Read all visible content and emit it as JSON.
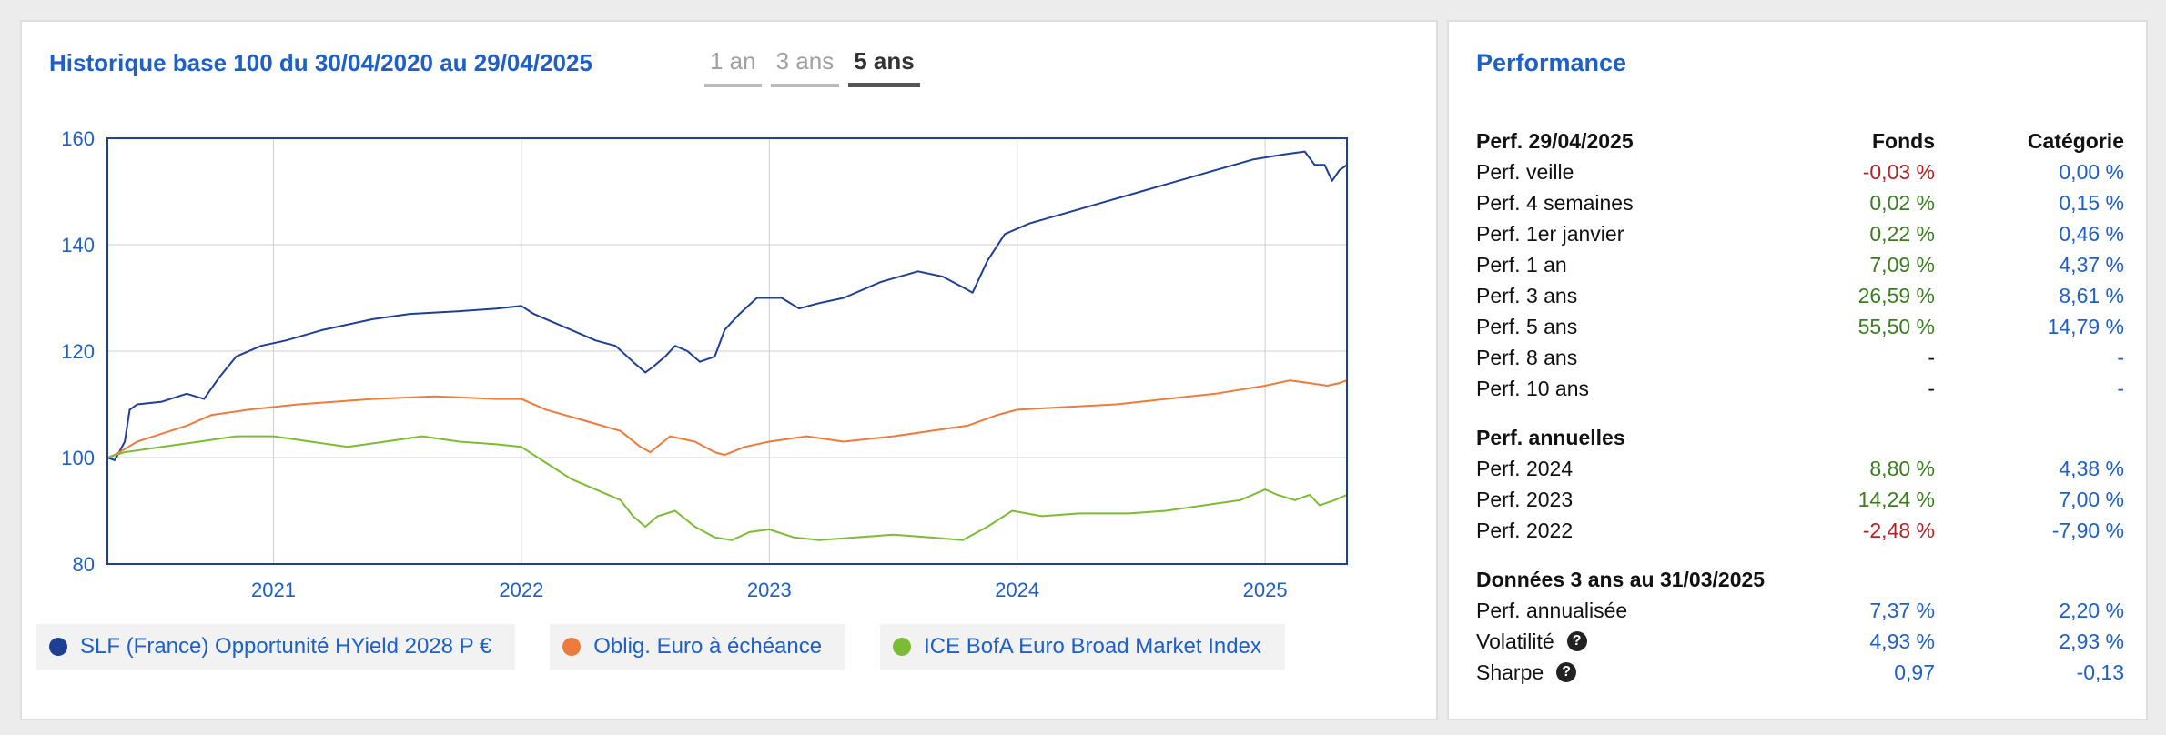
{
  "chart_panel": {
    "title": "Historique base 100 du 30/04/2020 au 29/04/2025",
    "tabs": [
      "1 an",
      "3 ans",
      "5 ans"
    ],
    "active_tab": "5 ans"
  },
  "chart_data": {
    "type": "line",
    "ylim": [
      80,
      160
    ],
    "yticks": [
      80,
      100,
      120,
      140,
      160
    ],
    "xlim": [
      2020.33,
      2025.33
    ],
    "xticks": [
      2021,
      2022,
      2023,
      2024,
      2025
    ],
    "xtick_labels": [
      "2021",
      "2022",
      "2023",
      "2024",
      "2025"
    ],
    "grid": true,
    "legend_position": "bottom",
    "series": [
      {
        "name": "SLF (France) Opportunité HYield 2028 P €",
        "color": "#1f3f94",
        "points": [
          [
            2020.33,
            100
          ],
          [
            2020.36,
            99.5
          ],
          [
            2020.4,
            103
          ],
          [
            2020.42,
            109
          ],
          [
            2020.45,
            110
          ],
          [
            2020.55,
            110.5
          ],
          [
            2020.65,
            112
          ],
          [
            2020.72,
            111
          ],
          [
            2020.78,
            115
          ],
          [
            2020.85,
            119
          ],
          [
            2020.95,
            121
          ],
          [
            2021.05,
            122
          ],
          [
            2021.2,
            124
          ],
          [
            2021.4,
            126
          ],
          [
            2021.55,
            127
          ],
          [
            2021.75,
            127.5
          ],
          [
            2021.9,
            128
          ],
          [
            2022.0,
            128.5
          ],
          [
            2022.05,
            127
          ],
          [
            2022.1,
            126
          ],
          [
            2022.2,
            124
          ],
          [
            2022.3,
            122
          ],
          [
            2022.38,
            121
          ],
          [
            2022.45,
            118
          ],
          [
            2022.5,
            116
          ],
          [
            2022.53,
            117
          ],
          [
            2022.58,
            119
          ],
          [
            2022.62,
            121
          ],
          [
            2022.67,
            120
          ],
          [
            2022.72,
            118
          ],
          [
            2022.78,
            119
          ],
          [
            2022.82,
            124
          ],
          [
            2022.88,
            127
          ],
          [
            2022.95,
            130
          ],
          [
            2023.05,
            130
          ],
          [
            2023.12,
            128
          ],
          [
            2023.2,
            129
          ],
          [
            2023.3,
            130
          ],
          [
            2023.45,
            133
          ],
          [
            2023.6,
            135
          ],
          [
            2023.7,
            134
          ],
          [
            2023.78,
            132
          ],
          [
            2023.82,
            131
          ],
          [
            2023.88,
            137
          ],
          [
            2023.95,
            142
          ],
          [
            2024.05,
            144
          ],
          [
            2024.2,
            146
          ],
          [
            2024.35,
            148
          ],
          [
            2024.5,
            150
          ],
          [
            2024.65,
            152
          ],
          [
            2024.8,
            154
          ],
          [
            2024.95,
            156
          ],
          [
            2025.08,
            157
          ],
          [
            2025.16,
            157.5
          ],
          [
            2025.2,
            155
          ],
          [
            2025.24,
            155
          ],
          [
            2025.27,
            152
          ],
          [
            2025.3,
            154
          ],
          [
            2025.33,
            155
          ]
        ]
      },
      {
        "name": "Oblig. Euro à échéance",
        "color": "#ec7b3c",
        "points": [
          [
            2020.33,
            100
          ],
          [
            2020.36,
            100.5
          ],
          [
            2020.45,
            103
          ],
          [
            2020.55,
            104.5
          ],
          [
            2020.65,
            106
          ],
          [
            2020.75,
            108
          ],
          [
            2020.9,
            109
          ],
          [
            2021.1,
            110
          ],
          [
            2021.4,
            111
          ],
          [
            2021.65,
            111.5
          ],
          [
            2021.9,
            111
          ],
          [
            2022.0,
            111
          ],
          [
            2022.1,
            109
          ],
          [
            2022.25,
            107
          ],
          [
            2022.4,
            105
          ],
          [
            2022.48,
            102
          ],
          [
            2022.52,
            101
          ],
          [
            2022.6,
            104
          ],
          [
            2022.7,
            103
          ],
          [
            2022.78,
            101
          ],
          [
            2022.82,
            100.5
          ],
          [
            2022.9,
            102
          ],
          [
            2023.0,
            103
          ],
          [
            2023.15,
            104
          ],
          [
            2023.3,
            103
          ],
          [
            2023.5,
            104
          ],
          [
            2023.65,
            105
          ],
          [
            2023.8,
            106
          ],
          [
            2023.92,
            108
          ],
          [
            2024.0,
            109
          ],
          [
            2024.2,
            109.5
          ],
          [
            2024.4,
            110
          ],
          [
            2024.6,
            111
          ],
          [
            2024.8,
            112
          ],
          [
            2025.0,
            113.5
          ],
          [
            2025.1,
            114.5
          ],
          [
            2025.18,
            114
          ],
          [
            2025.25,
            113.5
          ],
          [
            2025.3,
            114
          ],
          [
            2025.33,
            114.5
          ]
        ]
      },
      {
        "name": "ICE BofA Euro Broad Market Index",
        "color": "#7dbb36",
        "points": [
          [
            2020.33,
            100
          ],
          [
            2020.4,
            101
          ],
          [
            2020.55,
            102
          ],
          [
            2020.7,
            103
          ],
          [
            2020.85,
            104
          ],
          [
            2021.0,
            104
          ],
          [
            2021.15,
            103
          ],
          [
            2021.3,
            102
          ],
          [
            2021.45,
            103
          ],
          [
            2021.6,
            104
          ],
          [
            2021.75,
            103
          ],
          [
            2021.9,
            102.5
          ],
          [
            2022.0,
            102
          ],
          [
            2022.1,
            99
          ],
          [
            2022.2,
            96
          ],
          [
            2022.3,
            94
          ],
          [
            2022.4,
            92
          ],
          [
            2022.45,
            89
          ],
          [
            2022.5,
            87
          ],
          [
            2022.55,
            89
          ],
          [
            2022.62,
            90
          ],
          [
            2022.7,
            87
          ],
          [
            2022.78,
            85
          ],
          [
            2022.85,
            84.5
          ],
          [
            2022.92,
            86
          ],
          [
            2023.0,
            86.5
          ],
          [
            2023.1,
            85
          ],
          [
            2023.2,
            84.5
          ],
          [
            2023.35,
            85
          ],
          [
            2023.5,
            85.5
          ],
          [
            2023.65,
            85
          ],
          [
            2023.78,
            84.5
          ],
          [
            2023.88,
            87
          ],
          [
            2023.98,
            90
          ],
          [
            2024.1,
            89
          ],
          [
            2024.25,
            89.5
          ],
          [
            2024.45,
            89.5
          ],
          [
            2024.6,
            90
          ],
          [
            2024.75,
            91
          ],
          [
            2024.9,
            92
          ],
          [
            2025.0,
            94
          ],
          [
            2025.05,
            93
          ],
          [
            2025.12,
            92
          ],
          [
            2025.18,
            93
          ],
          [
            2025.22,
            91
          ],
          [
            2025.28,
            92
          ],
          [
            2025.33,
            93
          ]
        ]
      }
    ]
  },
  "performance": {
    "title": "Performance",
    "head": {
      "label": "Perf. 29/04/2025",
      "fonds": "Fonds",
      "categorie": "Catégorie"
    },
    "rows": [
      {
        "label": "Perf. veille",
        "fonds": "-0,03 %",
        "categorie": "0,00 %",
        "fonds_color": "#b22222",
        "categorie_color": "#1e5fc8"
      },
      {
        "label": "Perf. 4 semaines",
        "fonds": "0,02 %",
        "categorie": "0,15 %",
        "fonds_color": "#3a7d1e",
        "categorie_color": "#1e5fc8"
      },
      {
        "label": "Perf. 1er janvier",
        "fonds": "0,22 %",
        "categorie": "0,46 %",
        "fonds_color": "#3a7d1e",
        "categorie_color": "#1e5fc8"
      },
      {
        "label": "Perf. 1 an",
        "fonds": "7,09 %",
        "categorie": "4,37 %",
        "fonds_color": "#3a7d1e",
        "categorie_color": "#1e5fc8"
      },
      {
        "label": "Perf. 3 ans",
        "fonds": "26,59 %",
        "categorie": "8,61 %",
        "fonds_color": "#3a7d1e",
        "categorie_color": "#1e5fc8"
      },
      {
        "label": "Perf. 5 ans",
        "fonds": "55,50 %",
        "categorie": "14,79 %",
        "fonds_color": "#3a7d1e",
        "categorie_color": "#1e5fc8"
      },
      {
        "label": "Perf. 8 ans",
        "fonds": "-",
        "categorie": "-",
        "fonds_color": "#111111",
        "categorie_color": "#1e5fc8"
      },
      {
        "label": "Perf. 10 ans",
        "fonds": "-",
        "categorie": "-",
        "fonds_color": "#111111",
        "categorie_color": "#1e5fc8"
      }
    ],
    "annual_title": "Perf. annuelles",
    "annual_rows": [
      {
        "label": "Perf. 2024",
        "fonds": "8,80 %",
        "categorie": "4,38 %",
        "fonds_color": "#3a7d1e",
        "categorie_color": "#1e5fc8"
      },
      {
        "label": "Perf. 2023",
        "fonds": "14,24 %",
        "categorie": "7,00 %",
        "fonds_color": "#3a7d1e",
        "categorie_color": "#1e5fc8"
      },
      {
        "label": "Perf. 2022",
        "fonds": "-2,48 %",
        "categorie": "-7,90 %",
        "fonds_color": "#b22222",
        "categorie_color": "#1e5fc8"
      }
    ],
    "risk_title": "Données 3 ans au 31/03/2025",
    "risk_rows": [
      {
        "label": "Perf. annualisée",
        "fonds": "7,37 %",
        "categorie": "2,20 %",
        "help": false
      },
      {
        "label": "Volatilité",
        "fonds": "4,93 %",
        "categorie": "2,93 %",
        "help": true
      },
      {
        "label": "Sharpe",
        "fonds": "0,97",
        "categorie": "-0,13",
        "help": true
      }
    ],
    "risk_color": "#1e5fc8",
    "help_icon": "question-circle-icon",
    "help_glyph": "?"
  }
}
